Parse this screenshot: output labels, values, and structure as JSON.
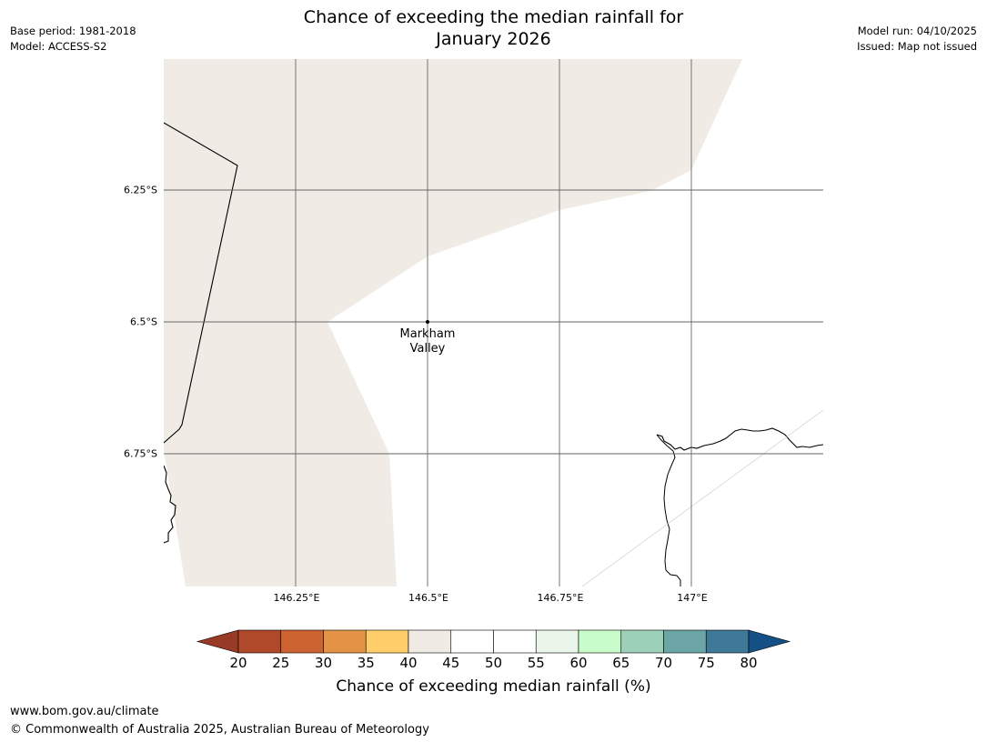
{
  "title": {
    "line1": "Chance of exceeding the median rainfall for",
    "line2": "January 2026"
  },
  "meta_left": {
    "base_period": "Base period: 1981-2018",
    "model": "Model: ACCESS-S2"
  },
  "meta_right": {
    "model_run": "Model run: 04/10/2025",
    "issued": "Issued: Map not issued"
  },
  "map": {
    "lat_labels": [
      "6.25°S",
      "6.5°S",
      "6.75°S"
    ],
    "lon_labels": [
      "146.25°E",
      "146.5°E",
      "146.75°E",
      "147°E"
    ],
    "place": {
      "line1": "Markham",
      "line2": "Valley"
    },
    "shaded_category": "40-45",
    "shaded_color": "#f0ebe5"
  },
  "colorbar": {
    "ticks": [
      "20",
      "25",
      "30",
      "35",
      "40",
      "45",
      "50",
      "55",
      "60",
      "65",
      "70",
      "75",
      "80"
    ],
    "colors": [
      "#b0482a",
      "#cd6330",
      "#e29345",
      "#ffcd69",
      "#f0ebe5",
      "#ffffff",
      "#ffffff",
      "#e9f6e9",
      "#c8fcca",
      "#9dd0b8",
      "#6ca5a5",
      "#3e7998"
    ],
    "under_color": "#983b26",
    "over_color": "#145086",
    "label": "Chance of exceeding median rainfall (%)"
  },
  "footer": {
    "url": "www.bom.gov.au/climate",
    "copyright": "© Commonwealth of Australia 2025, Australian Bureau of Meteorology"
  }
}
